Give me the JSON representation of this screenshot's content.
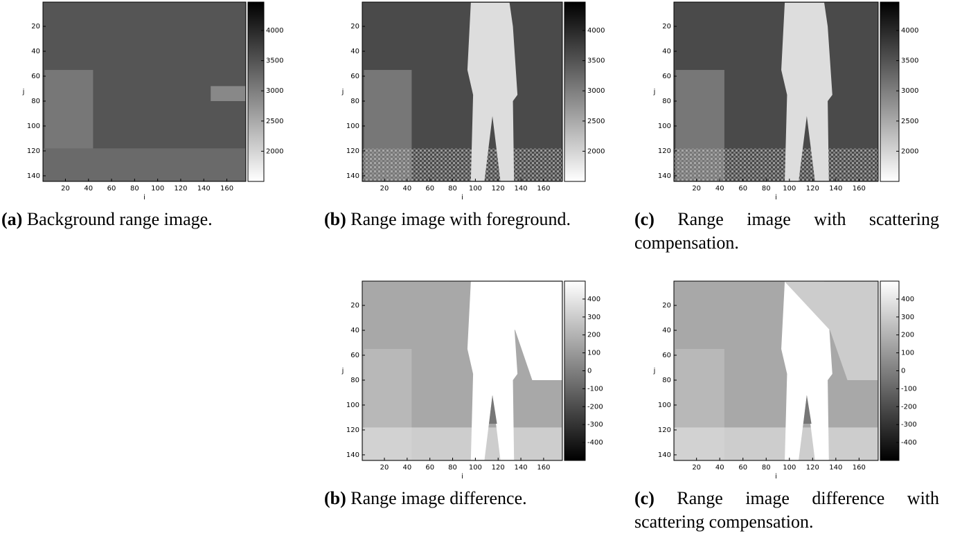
{
  "figure": {
    "panels": [
      {
        "label": "(a)",
        "caption": "Background range image.",
        "x_label": "i",
        "y_label": "j",
        "xticks": [
          20,
          40,
          60,
          80,
          100,
          120,
          140,
          160
        ],
        "yticks": [
          20,
          40,
          60,
          80,
          100,
          120,
          140
        ],
        "colorbar_ticks": [
          4000,
          3500,
          3000,
          2500,
          2000
        ],
        "colorbar_lim": [
          1500,
          4470
        ]
      },
      {
        "label": "(b)",
        "caption": "Range image with foreground.",
        "x_label": "i",
        "y_label": "j",
        "xticks": [
          20,
          40,
          60,
          80,
          100,
          120,
          140,
          160
        ],
        "yticks": [
          20,
          40,
          60,
          80,
          100,
          120,
          140
        ],
        "colorbar_ticks": [
          4000,
          3500,
          3000,
          2500,
          2000
        ],
        "colorbar_lim": [
          1500,
          4470
        ]
      },
      {
        "label": "(c)",
        "caption": "Range image with scattering compensation.",
        "x_label": "i",
        "y_label": "j",
        "xticks": [
          20,
          40,
          60,
          80,
          100,
          120,
          140,
          160
        ],
        "yticks": [
          20,
          40,
          60,
          80,
          100,
          120,
          140
        ],
        "colorbar_ticks": [
          4000,
          3500,
          3000,
          2500,
          2000
        ],
        "colorbar_lim": [
          1500,
          4470
        ]
      },
      {
        "label": "(b)",
        "caption": "Range image difference.",
        "x_label": "i",
        "y_label": "j",
        "xticks": [
          20,
          40,
          60,
          80,
          100,
          120,
          140,
          160
        ],
        "yticks": [
          20,
          40,
          60,
          80,
          100,
          120,
          140
        ],
        "colorbar_ticks": [
          400,
          300,
          200,
          100,
          0,
          -100,
          -200,
          -300,
          -400
        ],
        "colorbar_lim": [
          -500,
          500
        ]
      },
      {
        "label": "(c)",
        "caption": "Range image difference with scattering compensation.",
        "x_label": "i",
        "y_label": "j",
        "xticks": [
          20,
          40,
          60,
          80,
          100,
          120,
          140,
          160
        ],
        "yticks": [
          20,
          40,
          60,
          80,
          100,
          120,
          140
        ],
        "colorbar_ticks": [
          400,
          300,
          200,
          100,
          0,
          -100,
          -200,
          -300,
          -400
        ],
        "colorbar_lim": [
          -500,
          500
        ]
      }
    ]
  }
}
